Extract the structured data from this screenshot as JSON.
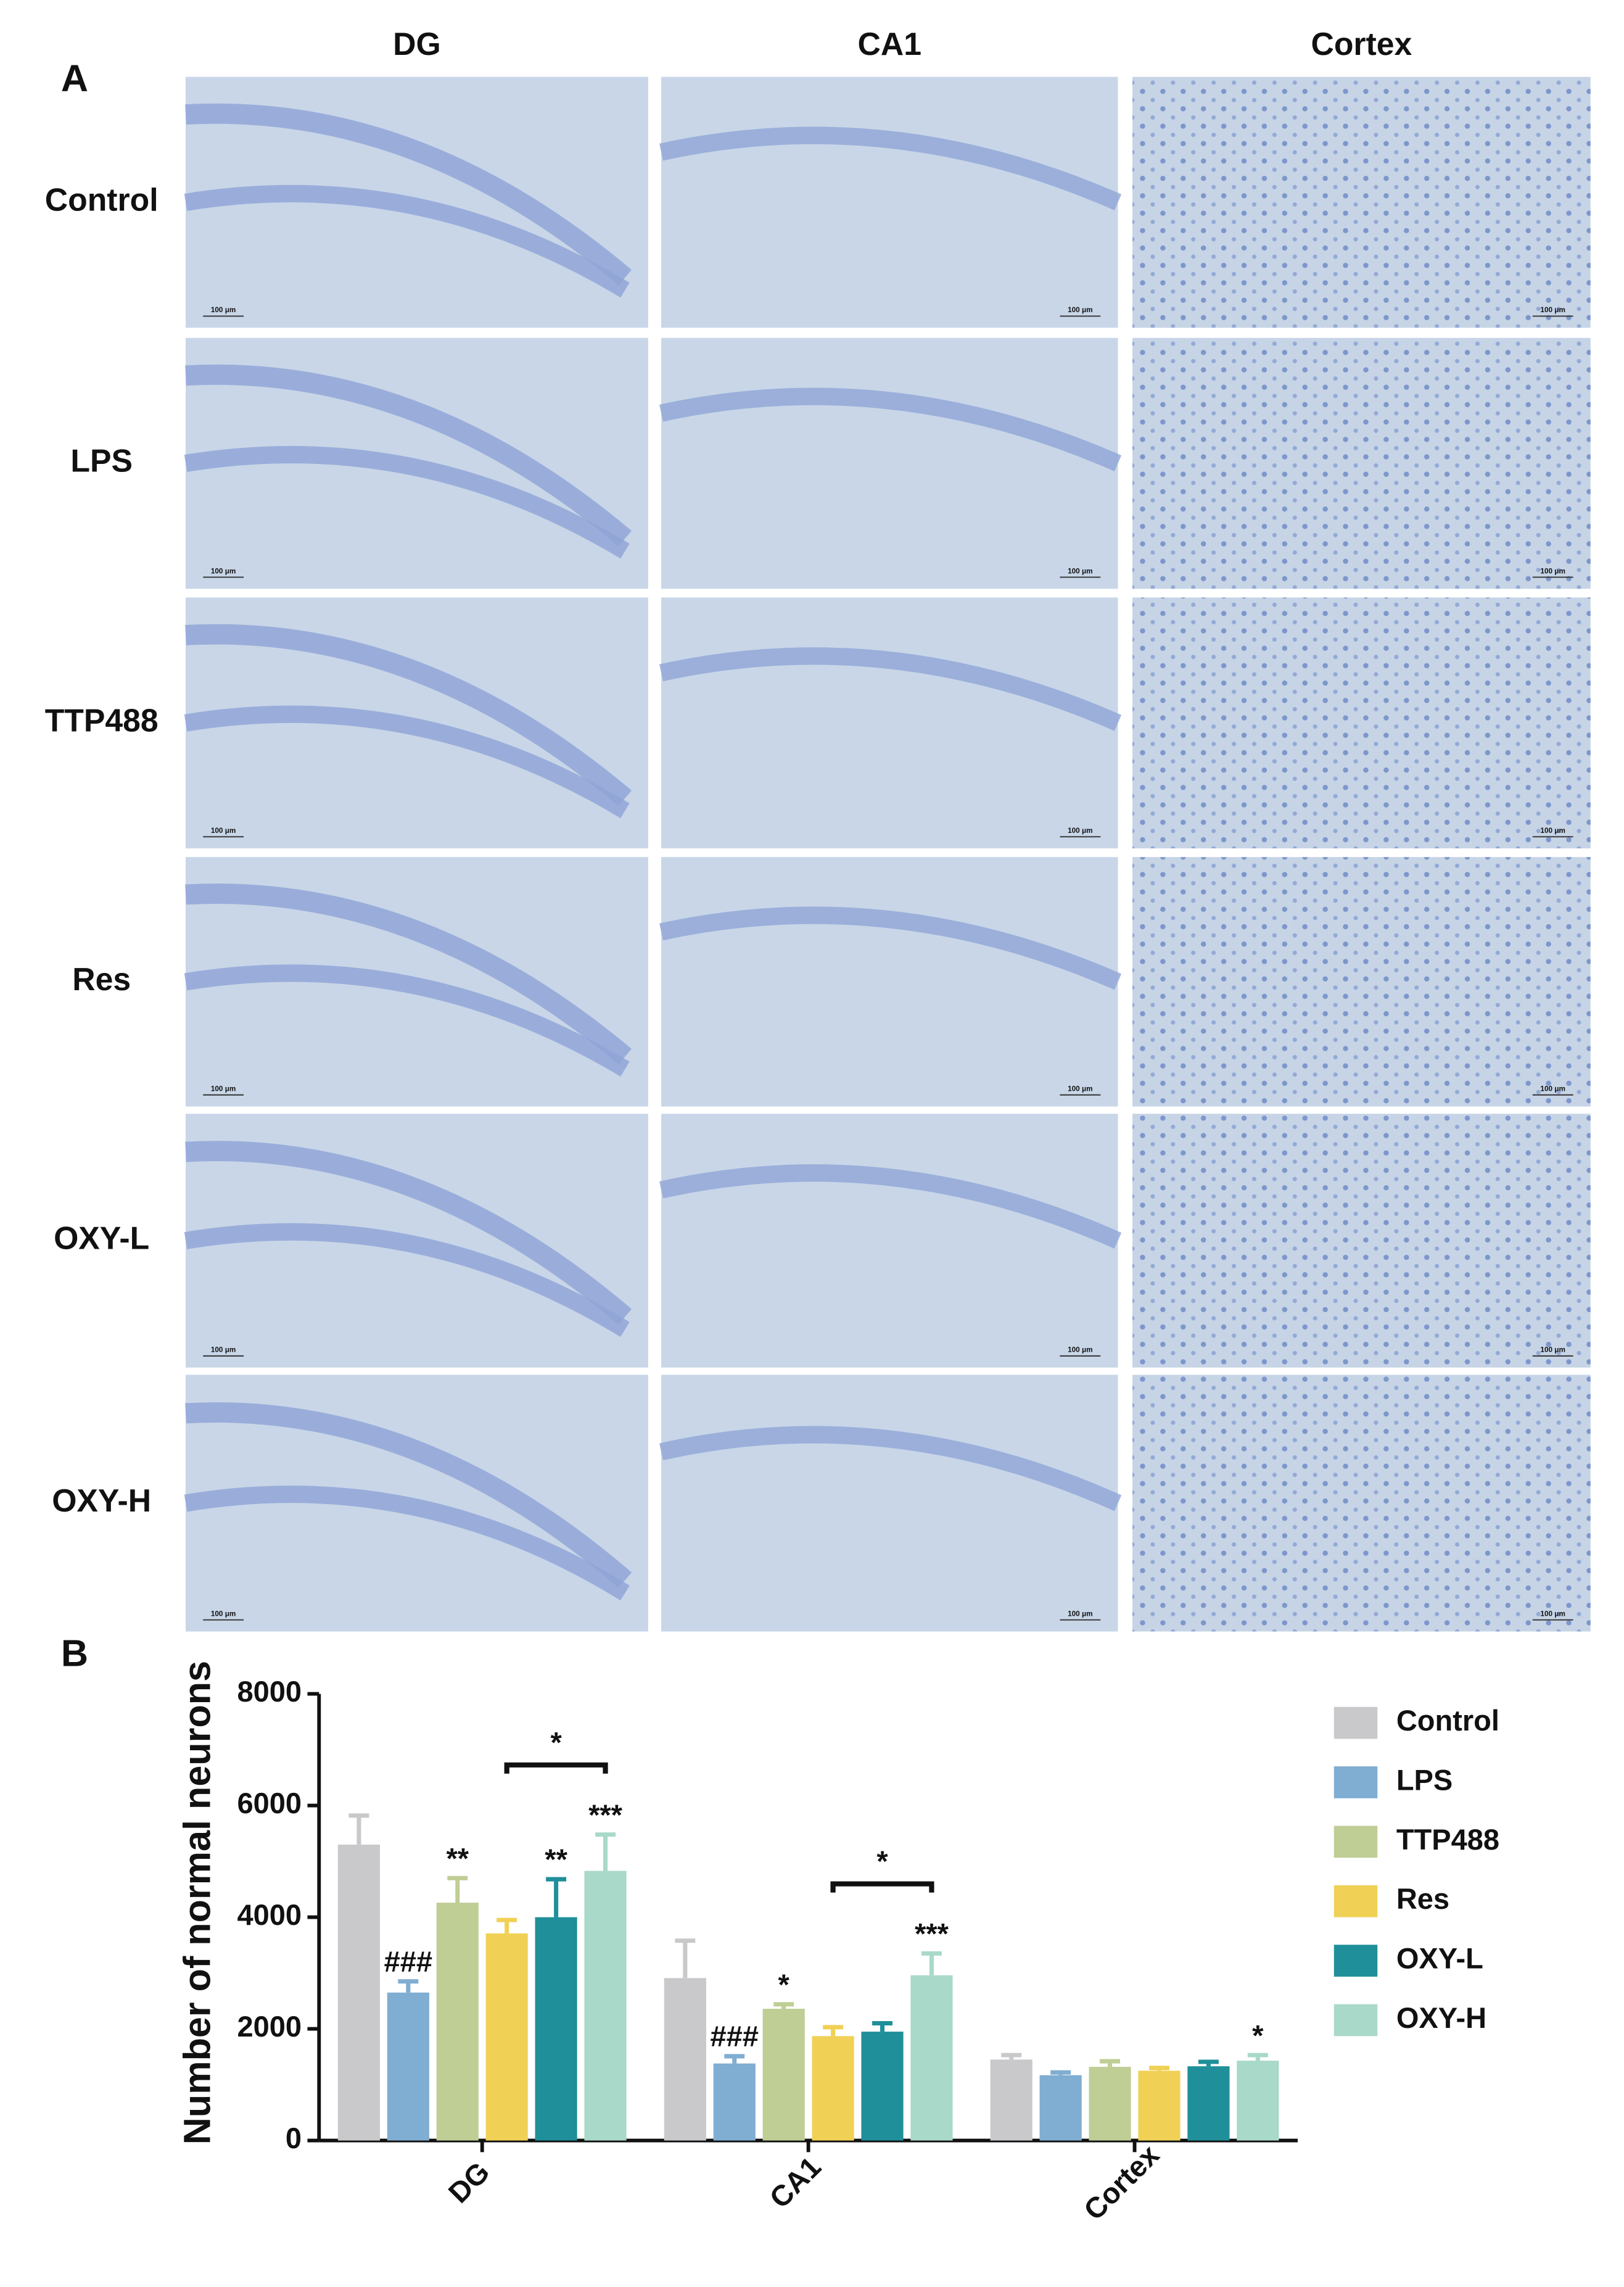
{
  "panels": {
    "a": "A",
    "b": "B"
  },
  "columns": [
    "DG",
    "CA1",
    "Cortex"
  ],
  "rows": [
    "Control",
    "LPS",
    "TTP488",
    "Res",
    "OXY-L",
    "OXY-H"
  ],
  "scale_bar": "100 μm",
  "chart_data": {
    "type": "bar",
    "ylabel": "Number of normal neurons",
    "categories": [
      "DG",
      "CA1",
      "Cortex"
    ],
    "ylim": [
      0,
      8000
    ],
    "yticks": [
      0,
      2000,
      4000,
      6000,
      8000
    ],
    "legend": "right",
    "series": [
      {
        "name": "Control",
        "color": "#c9c9cc",
        "values": [
          5300,
          2910,
          1450
        ],
        "errors": [
          520,
          670,
          80
        ]
      },
      {
        "name": "LPS",
        "color": "#80add2",
        "values": [
          2650,
          1380,
          1170
        ],
        "errors": [
          200,
          130,
          50
        ],
        "annotations": [
          "###",
          "###",
          null
        ]
      },
      {
        "name": "TTP488",
        "color": "#bfce95",
        "values": [
          4260,
          2360,
          1320
        ],
        "errors": [
          440,
          80,
          100
        ],
        "annotations": [
          "**",
          "*",
          null
        ]
      },
      {
        "name": "Res",
        "color": "#f0d155",
        "values": [
          3710,
          1870,
          1250
        ],
        "errors": [
          240,
          160,
          50
        ]
      },
      {
        "name": "OXY-L",
        "color": "#1f8f9a",
        "values": [
          4000,
          1950,
          1330
        ],
        "errors": [
          680,
          150,
          80
        ],
        "annotations": [
          "**",
          null,
          null
        ]
      },
      {
        "name": "OXY-H",
        "color": "#a9d9c8",
        "values": [
          4830,
          2960,
          1430
        ],
        "errors": [
          650,
          390,
          100
        ],
        "annotations": [
          "***",
          "***",
          "*"
        ]
      }
    ],
    "brackets": [
      {
        "category": "DG",
        "from": "Res",
        "to": "OXY-H",
        "text": "*"
      },
      {
        "category": "CA1",
        "from": "Res",
        "to": "OXY-H",
        "text": "*"
      }
    ]
  }
}
